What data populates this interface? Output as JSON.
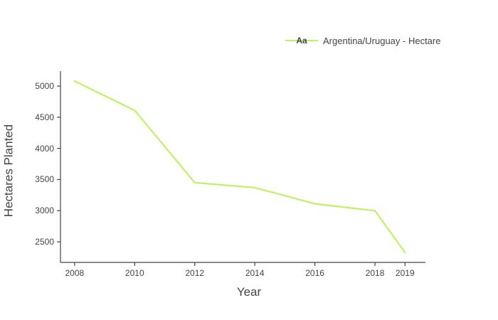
{
  "chart_data": {
    "type": "line",
    "title": "",
    "xlabel": "Year",
    "ylabel": "Hectares Planted",
    "series_name": "Argentina/Uruguay - Hectare",
    "x": [
      2008,
      2010,
      2012,
      2014,
      2016,
      2018,
      2019
    ],
    "values": [
      5080,
      4610,
      3450,
      3370,
      3110,
      3000,
      2330
    ],
    "x_ticks": [
      2008,
      2010,
      2012,
      2014,
      2016,
      2018,
      2019
    ],
    "y_ticks": [
      2500,
      3000,
      3500,
      4000,
      4500,
      5000
    ],
    "xlim": [
      2007.53,
      2019.68
    ],
    "ylim": [
      2170,
      5240
    ],
    "grid": false,
    "legend_position": "top-right",
    "line_color": "#bef264",
    "axis_color": "#444444",
    "text_color": "#444444",
    "background_color": "#ffffff"
  },
  "legend": {
    "sample_text": "Aa",
    "label": "Argentina/Uruguay - Hectare"
  }
}
